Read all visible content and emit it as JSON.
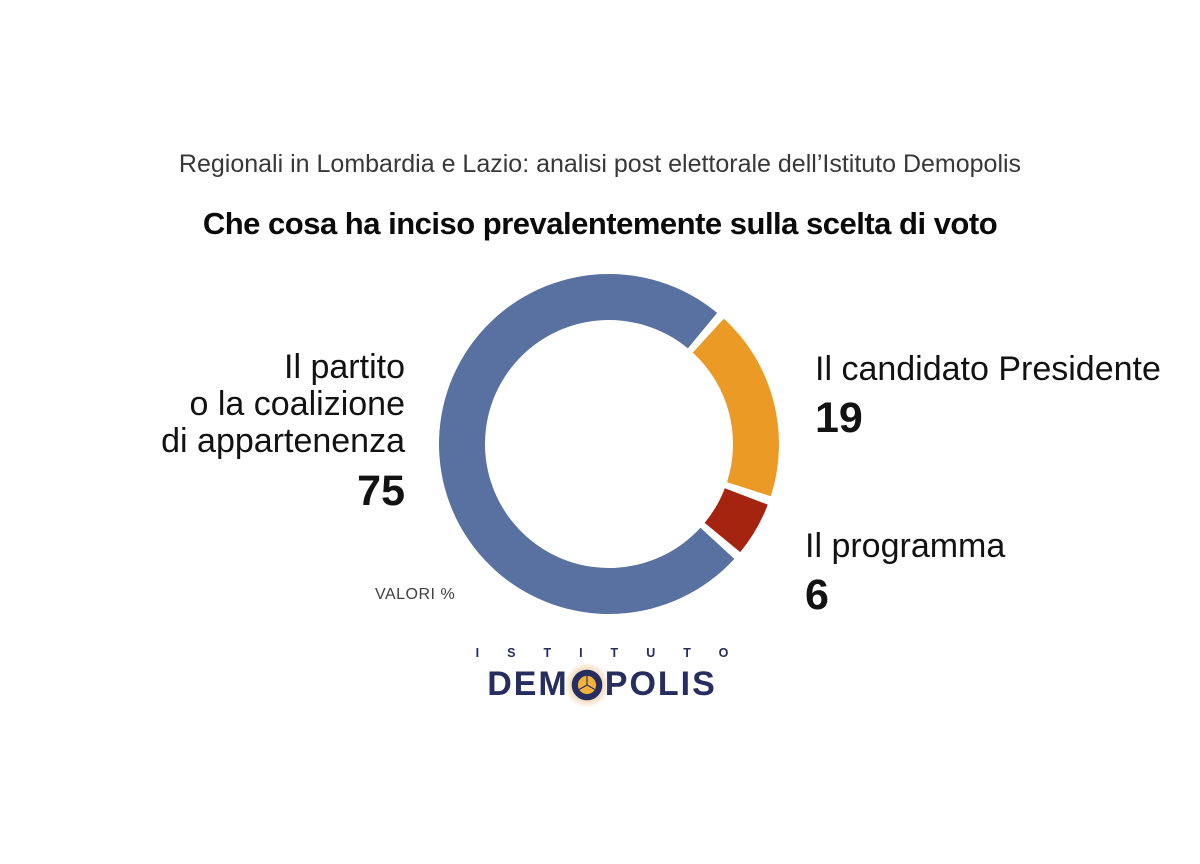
{
  "header": {
    "supertitle": "Regionali in Lombardia e Lazio: analisi post elettorale dell’Istituto Demopolis",
    "title": "Che cosa ha inciso prevalentemente sulla scelta di voto"
  },
  "chart_data": {
    "type": "pie",
    "subtype": "donut",
    "title": "Che cosa ha inciso prevalentemente sulla scelta di voto",
    "unit_note": "VALORI %",
    "total": 100,
    "segments": [
      {
        "id": "partito",
        "label": "Il partito o la coalizione di appartenenza",
        "label_lines": [
          "Il partito",
          "o la coalizione",
          "di appartenenza"
        ],
        "value": 75,
        "color": "#5871A0"
      },
      {
        "id": "candidato",
        "label": "Il candidato Presidente",
        "label_lines": [
          "Il candidato Presidente"
        ],
        "value": 19,
        "color": "#EA9A25"
      },
      {
        "id": "programma",
        "label": "Il programma",
        "label_lines": [
          "Il programma"
        ],
        "value": 6,
        "color": "#A42410"
      }
    ],
    "draw_order": [
      "candidato",
      "programma",
      "partito"
    ],
    "start_angle_deg": 41,
    "gap_deg": 3,
    "inner_radius_ratio": 0.73,
    "legend_position": "sides",
    "grid": false
  },
  "logo": {
    "istituto": "ISTITUTO",
    "name_prefix": "DEM",
    "name_suffix": "POLIS",
    "navy": "#262d5f",
    "gold": "#F2B23B"
  }
}
